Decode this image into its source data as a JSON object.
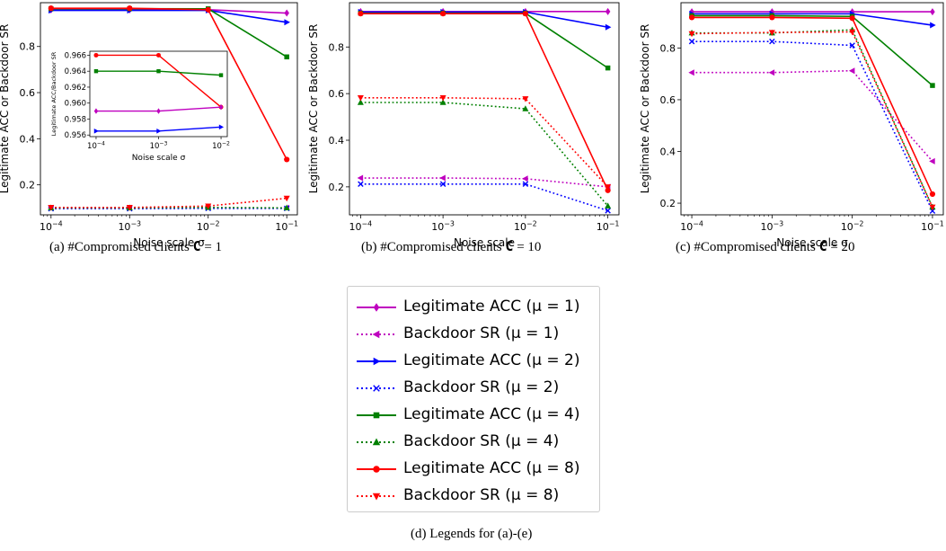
{
  "chart_data": [
    {
      "id": "a",
      "type": "line",
      "xscale": "log",
      "x": [
        0.0001,
        0.001,
        0.01,
        0.1
      ],
      "xticks": [
        "10^-4",
        "10^-3",
        "10^-2",
        "10^-1"
      ],
      "xlabel": "Noise scale σ",
      "ylabel": "Legitimate ACC or Backdoor SR",
      "ylim": [
        0.07,
        0.99
      ],
      "yticks": [
        0.2,
        0.4,
        0.6,
        0.8
      ],
      "series": [
        {
          "name": "Legitimate ACC (μ = 1)",
          "color": "#bf00bf",
          "style": "solid",
          "marker": "diamond",
          "values": [
            0.959,
            0.959,
            0.9595,
            0.945
          ]
        },
        {
          "name": "Backdoor SR (μ = 1)",
          "color": "#bf00bf",
          "style": "dotted",
          "marker": "tri-left",
          "values": [
            0.1,
            0.1,
            0.1,
            0.1
          ]
        },
        {
          "name": "Legitimate ACC (μ = 2)",
          "color": "#0000ff",
          "style": "solid",
          "marker": "tri-right",
          "values": [
            0.9565,
            0.9565,
            0.957,
            0.905
          ]
        },
        {
          "name": "Backdoor SR (μ = 2)",
          "color": "#0000ff",
          "style": "dotted",
          "marker": "x",
          "values": [
            0.097,
            0.097,
            0.098,
            0.098
          ]
        },
        {
          "name": "Legitimate ACC (μ = 4)",
          "color": "#008000",
          "style": "solid",
          "marker": "square",
          "values": [
            0.964,
            0.964,
            0.9635,
            0.755
          ]
        },
        {
          "name": "Backdoor SR (μ = 4)",
          "color": "#008000",
          "style": "dotted",
          "marker": "tri-up",
          "values": [
            0.1,
            0.1,
            0.102,
            0.1
          ]
        },
        {
          "name": "Legitimate ACC (μ = 8)",
          "color": "#ff0000",
          "style": "solid",
          "marker": "circle",
          "values": [
            0.966,
            0.966,
            0.9595,
            0.31
          ]
        },
        {
          "name": "Backdoor SR (μ = 8)",
          "color": "#ff0000",
          "style": "dotted",
          "marker": "tri-down",
          "values": [
            0.102,
            0.102,
            0.108,
            0.142
          ]
        }
      ],
      "inset": {
        "xticks": [
          "10^-4",
          "10^-3",
          "10^-2"
        ],
        "x": [
          0.0001,
          0.001,
          0.01
        ],
        "xlabel": "Noise scale σ",
        "ylabel": "Legitimate ACC/Backdoor SR",
        "ylim": [
          0.9558,
          0.9665
        ],
        "yticks": [
          "0.956",
          "0.958",
          "0.960",
          "0.962",
          "0.964",
          "0.966"
        ],
        "series": [
          {
            "color": "#ff0000",
            "marker": "circle",
            "values": [
              0.966,
              0.966,
              0.9595
            ]
          },
          {
            "color": "#008000",
            "marker": "square",
            "values": [
              0.964,
              0.964,
              0.9635
            ]
          },
          {
            "color": "#bf00bf",
            "marker": "diamond",
            "values": [
              0.959,
              0.959,
              0.9595
            ]
          },
          {
            "color": "#0000ff",
            "marker": "tri-right",
            "values": [
              0.9565,
              0.9565,
              0.957
            ]
          }
        ]
      }
    },
    {
      "id": "b",
      "type": "line",
      "xscale": "log",
      "x": [
        0.0001,
        0.001,
        0.01,
        0.1
      ],
      "xticks": [
        "10^-4",
        "10^-3",
        "10^-2",
        "10^-1"
      ],
      "xlabel": "Noise scale",
      "ylabel": "Legitimate ACC or Backdoor SR",
      "ylim": [
        0.08,
        0.99
      ],
      "yticks": [
        0.2,
        0.4,
        0.6,
        0.8
      ],
      "series": [
        {
          "name": "Legitimate ACC (μ = 1)",
          "color": "#bf00bf",
          "style": "solid",
          "marker": "diamond",
          "values": [
            0.952,
            0.952,
            0.952,
            0.952
          ]
        },
        {
          "name": "Backdoor SR (μ = 1)",
          "color": "#bf00bf",
          "style": "dotted",
          "marker": "tri-left",
          "values": [
            0.238,
            0.238,
            0.235,
            0.2
          ]
        },
        {
          "name": "Legitimate ACC (μ = 2)",
          "color": "#0000ff",
          "style": "solid",
          "marker": "tri-right",
          "values": [
            0.95,
            0.95,
            0.95,
            0.885
          ]
        },
        {
          "name": "Backdoor SR (μ = 2)",
          "color": "#0000ff",
          "style": "dotted",
          "marker": "x",
          "values": [
            0.212,
            0.212,
            0.212,
            0.098
          ]
        },
        {
          "name": "Legitimate ACC (μ = 4)",
          "color": "#008000",
          "style": "solid",
          "marker": "square",
          "values": [
            0.945,
            0.945,
            0.945,
            0.71
          ]
        },
        {
          "name": "Backdoor SR (μ = 4)",
          "color": "#008000",
          "style": "dotted",
          "marker": "tri-up",
          "values": [
            0.562,
            0.562,
            0.535,
            0.118
          ]
        },
        {
          "name": "Legitimate ACC (μ = 8)",
          "color": "#ff0000",
          "style": "solid",
          "marker": "circle",
          "values": [
            0.943,
            0.943,
            0.943,
            0.185
          ]
        },
        {
          "name": "Backdoor SR (μ = 8)",
          "color": "#ff0000",
          "style": "dotted",
          "marker": "tri-down",
          "values": [
            0.582,
            0.582,
            0.578,
            0.2
          ]
        }
      ]
    },
    {
      "id": "c",
      "type": "line",
      "xscale": "log",
      "x": [
        0.0001,
        0.001,
        0.01,
        0.1
      ],
      "xticks": [
        "10^-4",
        "10^-3",
        "10^-2",
        "10^-1"
      ],
      "xlabel": "Noise scale σ",
      "ylabel": "Legitimate ACC or Backdoor SR",
      "ylim": [
        0.155,
        0.975
      ],
      "yticks": [
        0.2,
        0.4,
        0.6,
        0.8
      ],
      "series": [
        {
          "name": "Legitimate ACC (μ = 1)",
          "color": "#bf00bf",
          "style": "solid",
          "marker": "diamond",
          "values": [
            0.94,
            0.94,
            0.94,
            0.94
          ]
        },
        {
          "name": "Backdoor SR (μ = 1)",
          "color": "#bf00bf",
          "style": "dotted",
          "marker": "tri-left",
          "values": [
            0.705,
            0.705,
            0.712,
            0.362
          ]
        },
        {
          "name": "Legitimate ACC (μ = 2)",
          "color": "#0000ff",
          "style": "solid",
          "marker": "tri-right",
          "values": [
            0.932,
            0.932,
            0.932,
            0.888
          ]
        },
        {
          "name": "Backdoor SR (μ = 2)",
          "color": "#0000ff",
          "style": "dotted",
          "marker": "x",
          "values": [
            0.825,
            0.825,
            0.81,
            0.17
          ]
        },
        {
          "name": "Legitimate ACC (μ = 4)",
          "color": "#008000",
          "style": "solid",
          "marker": "square",
          "values": [
            0.925,
            0.925,
            0.922,
            0.655
          ]
        },
        {
          "name": "Backdoor SR (μ = 4)",
          "color": "#008000",
          "style": "dotted",
          "marker": "tri-up",
          "values": [
            0.858,
            0.858,
            0.87,
            0.185
          ]
        },
        {
          "name": "Legitimate ACC (μ = 8)",
          "color": "#ff0000",
          "style": "solid",
          "marker": "circle",
          "values": [
            0.918,
            0.918,
            0.915,
            0.235
          ]
        },
        {
          "name": "Backdoor SR (μ = 8)",
          "color": "#ff0000",
          "style": "dotted",
          "marker": "tri-down",
          "values": [
            0.855,
            0.86,
            0.862,
            0.185
          ]
        }
      ]
    }
  ],
  "captions": {
    "a": {
      "prefix": "(a) #Compromised clients ",
      "symbol": "C",
      "suffix": " = 1"
    },
    "b": {
      "prefix": "(b) #Compromised clients ",
      "symbol": "C",
      "suffix": " = 10"
    },
    "c": {
      "prefix": "(c) #Compromised clients ",
      "symbol": "C",
      "suffix": " = 20"
    },
    "d": "(d) Legends for (a)-(e)"
  },
  "legend": [
    {
      "label": "Legitimate ACC (μ = 1)",
      "color": "#bf00bf",
      "style": "solid",
      "marker": "diamond"
    },
    {
      "label": "Backdoor SR (μ = 1)",
      "color": "#bf00bf",
      "style": "dotted",
      "marker": "tri-left"
    },
    {
      "label": "Legitimate ACC (μ = 2)",
      "color": "#0000ff",
      "style": "solid",
      "marker": "tri-right"
    },
    {
      "label": "Backdoor SR (μ = 2)",
      "color": "#0000ff",
      "style": "dotted",
      "marker": "x"
    },
    {
      "label": "Legitimate ACC (μ = 4)",
      "color": "#008000",
      "style": "solid",
      "marker": "square"
    },
    {
      "label": "Backdoor SR (μ = 4)",
      "color": "#008000",
      "style": "dotted",
      "marker": "tri-up"
    },
    {
      "label": "Legitimate ACC (μ = 8)",
      "color": "#ff0000",
      "style": "solid",
      "marker": "circle"
    },
    {
      "label": "Backdoor SR (μ = 8)",
      "color": "#ff0000",
      "style": "dotted",
      "marker": "tri-down"
    }
  ]
}
